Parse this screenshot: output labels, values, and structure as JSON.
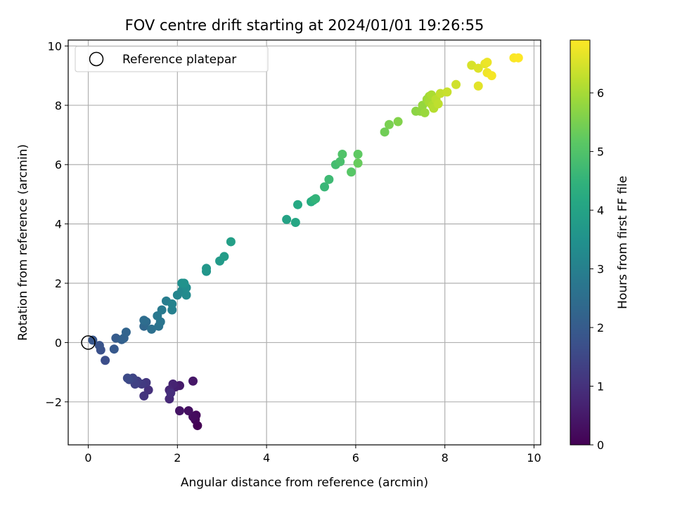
{
  "chart_data": {
    "type": "scatter",
    "title": "FOV centre drift starting at 2024/01/01 19:26:55",
    "xlabel": "Angular distance from reference (arcmin)",
    "ylabel": "Rotation from reference (arcmin)",
    "xlim": [
      -0.45,
      10.15
    ],
    "ylim": [
      -3.45,
      10.2
    ],
    "xticks": [
      0,
      2,
      4,
      6,
      8,
      10
    ],
    "yticks": [
      -2,
      0,
      2,
      4,
      6,
      8,
      10
    ],
    "grid": true,
    "legend": {
      "position": "top-left",
      "entries": [
        "Reference platepar"
      ]
    },
    "reference_point": {
      "x": 0,
      "y": 0,
      "label": "Reference platepar"
    },
    "colorbar": {
      "label": "Hours from first FF file",
      "colormap": "viridis",
      "min": 0,
      "max": 6.9,
      "ticks": [
        0,
        1,
        2,
        3,
        4,
        5,
        6
      ]
    },
    "series": [
      {
        "points": [
          [
            2.45,
            -2.8,
            0.0
          ],
          [
            2.4,
            -2.6,
            0.08
          ],
          [
            2.42,
            -2.45,
            0.15
          ],
          [
            2.35,
            -2.5,
            0.22
          ],
          [
            2.25,
            -2.3,
            0.3
          ],
          [
            2.05,
            -2.3,
            0.38
          ],
          [
            2.35,
            -1.3,
            0.45
          ],
          [
            2.05,
            -1.45,
            0.52
          ],
          [
            1.95,
            -1.5,
            0.6
          ],
          [
            1.9,
            -1.4,
            0.68
          ],
          [
            1.82,
            -1.6,
            0.75
          ],
          [
            1.82,
            -1.9,
            0.82
          ],
          [
            1.85,
            -1.7,
            0.9
          ],
          [
            1.35,
            -1.6,
            0.97
          ],
          [
            1.25,
            -1.8,
            1.05
          ],
          [
            1.3,
            -1.35,
            1.12
          ],
          [
            1.2,
            -1.4,
            1.2
          ],
          [
            1.1,
            -1.3,
            1.28
          ],
          [
            1.05,
            -1.4,
            1.35
          ],
          [
            1.0,
            -1.2,
            1.42
          ],
          [
            0.92,
            -1.25,
            1.5
          ],
          [
            0.88,
            -1.2,
            1.57
          ],
          [
            0.38,
            -0.6,
            1.65
          ],
          [
            0.28,
            -0.25,
            1.72
          ],
          [
            0.25,
            -0.1,
            1.8
          ],
          [
            0.1,
            0.08,
            1.88
          ],
          [
            0.58,
            -0.22,
            1.95
          ],
          [
            0.62,
            0.15,
            2.02
          ],
          [
            0.75,
            0.1,
            2.1
          ],
          [
            0.8,
            0.15,
            2.17
          ],
          [
            0.85,
            0.35,
            2.25
          ],
          [
            1.25,
            0.55,
            2.32
          ],
          [
            1.3,
            0.7,
            2.4
          ],
          [
            1.25,
            0.75,
            2.47
          ],
          [
            1.42,
            0.45,
            2.55
          ],
          [
            1.58,
            0.55,
            2.62
          ],
          [
            1.62,
            0.7,
            2.7
          ],
          [
            1.55,
            0.9,
            2.77
          ],
          [
            1.65,
            1.1,
            2.85
          ],
          [
            1.75,
            1.4,
            2.92
          ],
          [
            1.88,
            1.1,
            3.0
          ],
          [
            1.88,
            1.3,
            3.07
          ],
          [
            2.0,
            1.6,
            3.15
          ],
          [
            2.1,
            1.75,
            3.22
          ],
          [
            2.2,
            1.6,
            3.3
          ],
          [
            2.2,
            1.85,
            3.37
          ],
          [
            2.1,
            2.0,
            3.45
          ],
          [
            2.15,
            2.0,
            3.52
          ],
          [
            2.65,
            2.4,
            3.6
          ],
          [
            2.65,
            2.5,
            3.67
          ],
          [
            2.95,
            2.75,
            3.75
          ],
          [
            3.05,
            2.9,
            3.82
          ],
          [
            3.2,
            3.4,
            3.9
          ],
          [
            4.45,
            4.15,
            4.0
          ],
          [
            4.65,
            4.05,
            4.1
          ],
          [
            4.7,
            4.65,
            4.2
          ],
          [
            5.0,
            4.75,
            4.3
          ],
          [
            5.05,
            4.8,
            4.4
          ],
          [
            5.1,
            4.85,
            4.5
          ],
          [
            5.3,
            5.25,
            4.6
          ],
          [
            5.4,
            5.5,
            4.7
          ],
          [
            5.55,
            6.0,
            4.8
          ],
          [
            5.65,
            6.1,
            4.9
          ],
          [
            5.7,
            6.35,
            5.0
          ],
          [
            5.9,
            5.75,
            5.1
          ],
          [
            6.05,
            6.35,
            5.2
          ],
          [
            6.05,
            6.05,
            5.3
          ],
          [
            6.65,
            7.1,
            5.4
          ],
          [
            6.75,
            7.35,
            5.5
          ],
          [
            6.95,
            7.45,
            5.6
          ],
          [
            7.35,
            7.8,
            5.7
          ],
          [
            7.45,
            7.8,
            5.75
          ],
          [
            7.5,
            8.0,
            5.8
          ],
          [
            7.55,
            7.75,
            5.85
          ],
          [
            7.6,
            8.2,
            5.9
          ],
          [
            7.65,
            8.3,
            5.95
          ],
          [
            7.65,
            8.1,
            6.0
          ],
          [
            7.7,
            8.35,
            6.05
          ],
          [
            7.72,
            8.0,
            6.1
          ],
          [
            7.75,
            7.9,
            6.15
          ],
          [
            7.8,
            8.2,
            6.2
          ],
          [
            7.85,
            8.05,
            6.25
          ],
          [
            7.9,
            8.4,
            6.3
          ],
          [
            8.05,
            8.45,
            6.35
          ],
          [
            8.25,
            8.7,
            6.42
          ],
          [
            8.6,
            9.35,
            6.5
          ],
          [
            8.75,
            9.25,
            6.57
          ],
          [
            8.75,
            8.65,
            6.62
          ],
          [
            8.9,
            9.4,
            6.67
          ],
          [
            8.95,
            9.45,
            6.72
          ],
          [
            8.95,
            9.1,
            6.77
          ],
          [
            9.05,
            9.0,
            6.82
          ],
          [
            9.55,
            9.6,
            6.87
          ],
          [
            9.65,
            9.6,
            6.9
          ]
        ]
      }
    ]
  }
}
